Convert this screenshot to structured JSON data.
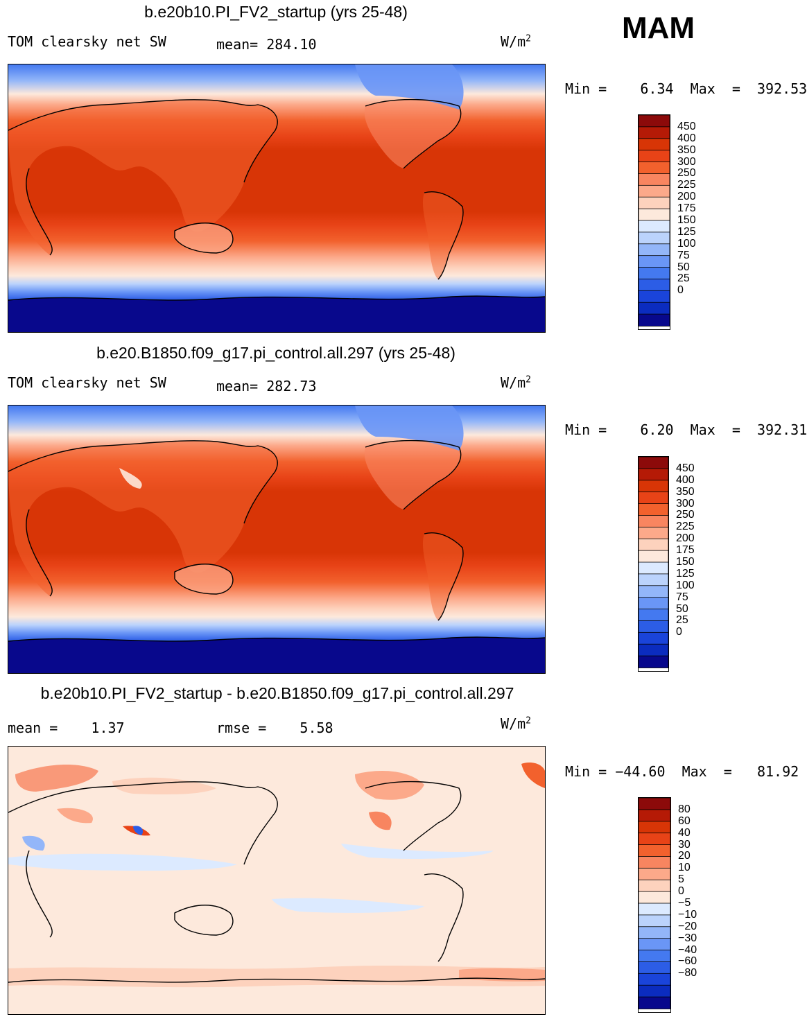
{
  "season": "MAM",
  "units_label": "W/m",
  "units_sup": "2",
  "colors": {
    "abs_scale": [
      "#08088c",
      "#0b2cbf",
      "#1a44da",
      "#2c5de6",
      "#4479f0",
      "#6a96f6",
      "#93b6f9",
      "#bbd3fc",
      "#dceaff",
      "#fde9dc",
      "#fdd2bd",
      "#fca98a",
      "#f88560",
      "#f2612d",
      "#e84317",
      "#d83506",
      "#b51a06",
      "#8c0a0a"
    ],
    "diff_scale": [
      "#08088c",
      "#0b2cbf",
      "#1a44da",
      "#2c5de6",
      "#4479f0",
      "#6a96f6",
      "#93b6f9",
      "#bbd3fc",
      "#dceaff",
      "#fde9dc",
      "#fdd2bd",
      "#fca98a",
      "#f88560",
      "#f2612d",
      "#e84317",
      "#d83506",
      "#b51a06",
      "#8c0a0a"
    ]
  },
  "panels": [
    {
      "title": "b.e20b10.PI_FV2_startup (yrs 25-48)",
      "left_label": "TOM clearsky net SW",
      "stat1": "mean= 284.10",
      "stat2": "",
      "minmax": "Min =    6.34  Max  =  392.53"
    },
    {
      "title": "b.e20.B1850.f09_g17.pi_control.all.297 (yrs 25-48)",
      "left_label": "TOM clearsky net SW",
      "stat1": "mean= 282.73",
      "stat2": "",
      "minmax": "Min =    6.20  Max  =  392.31"
    },
    {
      "title": "b.e20b10.PI_FV2_startup - b.e20.B1850.f09_g17.pi_control.all.297",
      "left_label": "mean =    1.37",
      "stat1": "rmse =    5.58",
      "stat2": "",
      "minmax": "Min = −44.60  Max  =   81.92"
    }
  ],
  "chart_data": [
    {
      "type": "heatmap",
      "title": "b.e20b10.PI_FV2_startup (yrs 25-48)",
      "variable": "TOM clearsky net SW",
      "units": "W/m2",
      "mean": 284.1,
      "min": 6.34,
      "max": 392.53,
      "colorbar_levels": [
        "450",
        "400",
        "350",
        "300",
        "250",
        "225",
        "200",
        "175",
        "150",
        "125",
        "100",
        "75",
        "50",
        "25",
        "0"
      ]
    },
    {
      "type": "heatmap",
      "title": "b.e20.B1850.f09_g17.pi_control.all.297 (yrs 25-48)",
      "variable": "TOM clearsky net SW",
      "units": "W/m2",
      "mean": 282.73,
      "min": 6.2,
      "max": 392.31,
      "colorbar_levels": [
        "450",
        "400",
        "350",
        "300",
        "250",
        "225",
        "200",
        "175",
        "150",
        "125",
        "100",
        "75",
        "50",
        "25",
        "0"
      ]
    },
    {
      "type": "heatmap",
      "title": "b.e20b10.PI_FV2_startup - b.e20.B1850.f09_g17.pi_control.all.297",
      "units": "W/m2",
      "mean": 1.37,
      "rmse": 5.58,
      "min": -44.6,
      "max": 81.92,
      "colorbar_levels": [
        "80",
        "60",
        "40",
        "30",
        "20",
        "10",
        "5",
        "0",
        "−5",
        "−10",
        "−20",
        "−30",
        "−40",
        "−60",
        "−80"
      ]
    }
  ]
}
